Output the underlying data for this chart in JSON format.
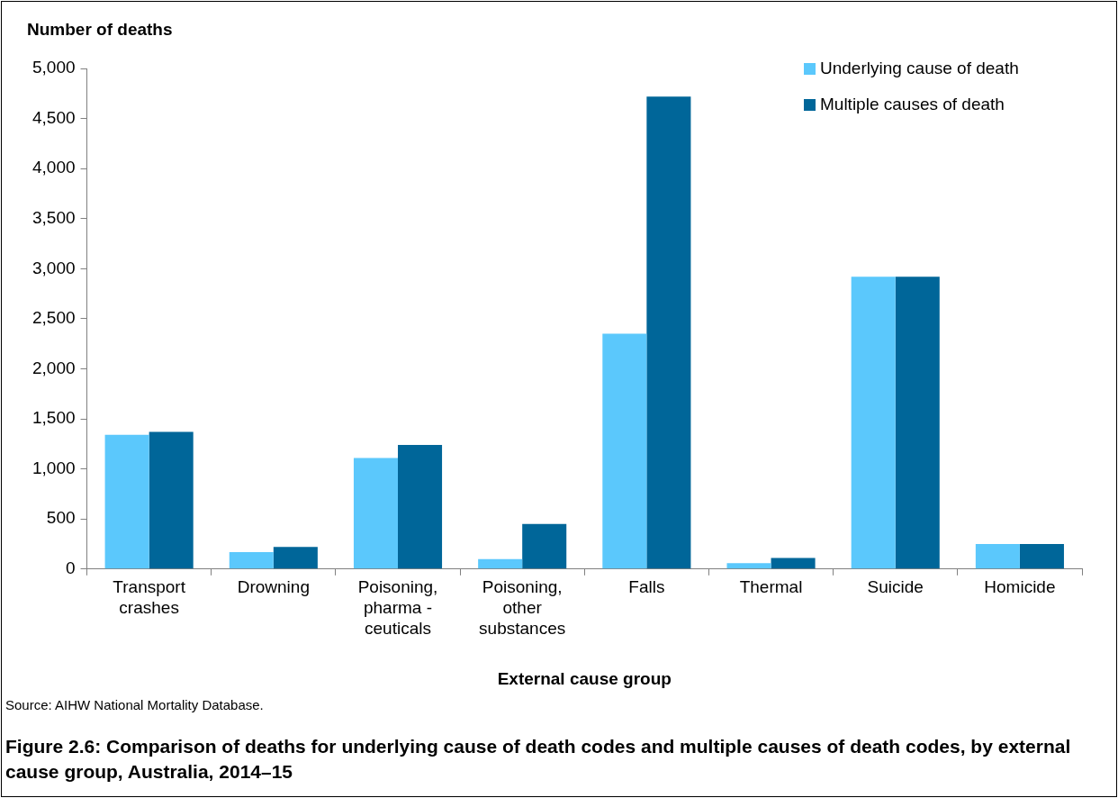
{
  "chart_data": {
    "type": "bar",
    "title": "Figure 2.6: Comparison of deaths for underlying cause of death codes and multiple causes of death codes, by external cause group, Australia, 2014–15",
    "ylabel": "Number of deaths",
    "xlabel": "External cause group",
    "annotations": [
      "Source: AIHW National Mortality Database."
    ],
    "categories": [
      "Transport\ncrashes",
      "Drowning",
      "Poisoning,\npharma -\nceuticals",
      "Poisoning,\nother\nsubstances",
      "Falls",
      "Thermal",
      "Suicide",
      "Homicide"
    ],
    "series": [
      {
        "name": "Underlying cause of death",
        "color": "#5bc8fc",
        "values": [
          1340,
          170,
          1110,
          100,
          2350,
          60,
          2920,
          250
        ]
      },
      {
        "name": "Multiple causes of death",
        "color": "#006699",
        "values": [
          1370,
          220,
          1240,
          450,
          4720,
          110,
          2920,
          250
        ]
      }
    ],
    "ylim": [
      0,
      5000
    ],
    "yticks": [
      0,
      500,
      {
        "value": 1000,
        "label": "1,000"
      },
      {
        "value": 1500,
        "label": "1,500"
      },
      {
        "value": 2000,
        "label": "2,000"
      },
      {
        "value": 2500,
        "label": "2,500"
      },
      {
        "value": 3000,
        "label": "3,000"
      },
      {
        "value": 3500,
        "label": "3,500"
      },
      {
        "value": 4000,
        "label": "4,000"
      },
      {
        "value": 4500,
        "label": "4,500"
      },
      {
        "value": 5000,
        "label": "5,000"
      }
    ],
    "legend": "top right",
    "grid": false
  }
}
